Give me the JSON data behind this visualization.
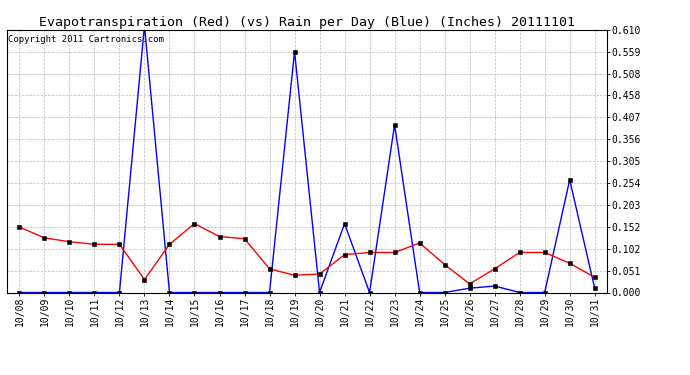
{
  "title": "Evapotranspiration (Red) (vs) Rain per Day (Blue) (Inches) 20111101",
  "copyright": "Copyright 2011 Cartronics.com",
  "dates": [
    "10/08",
    "10/09",
    "10/10",
    "10/11",
    "10/12",
    "10/13",
    "10/14",
    "10/15",
    "10/16",
    "10/17",
    "10/18",
    "10/19",
    "10/20",
    "10/21",
    "10/22",
    "10/23",
    "10/24",
    "10/25",
    "10/26",
    "10/27",
    "10/28",
    "10/29",
    "10/30",
    "10/31"
  ],
  "blue_rain": [
    0.0,
    0.0,
    0.0,
    0.0,
    0.0,
    0.62,
    0.0,
    0.0,
    0.0,
    0.0,
    0.0,
    0.56,
    0.0,
    0.16,
    0.0,
    0.39,
    0.0,
    0.0,
    0.01,
    0.015,
    0.0,
    0.0,
    0.262,
    0.01
  ],
  "red_et": [
    0.152,
    0.127,
    0.118,
    0.112,
    0.112,
    0.03,
    0.112,
    0.16,
    0.13,
    0.125,
    0.055,
    0.04,
    0.043,
    0.088,
    0.093,
    0.093,
    0.115,
    0.065,
    0.02,
    0.055,
    0.093,
    0.093,
    0.068,
    0.035
  ],
  "blue_color": "#0000ff",
  "red_color": "#ff0000",
  "bg_color": "#ffffff",
  "grid_color": "#bbbbbb",
  "ylim": [
    0.0,
    0.61
  ],
  "yticks": [
    0.0,
    0.051,
    0.102,
    0.152,
    0.203,
    0.254,
    0.305,
    0.356,
    0.407,
    0.458,
    0.508,
    0.559,
    0.61
  ],
  "title_fontsize": 9.5,
  "copyright_fontsize": 6.5,
  "tick_fontsize": 7
}
